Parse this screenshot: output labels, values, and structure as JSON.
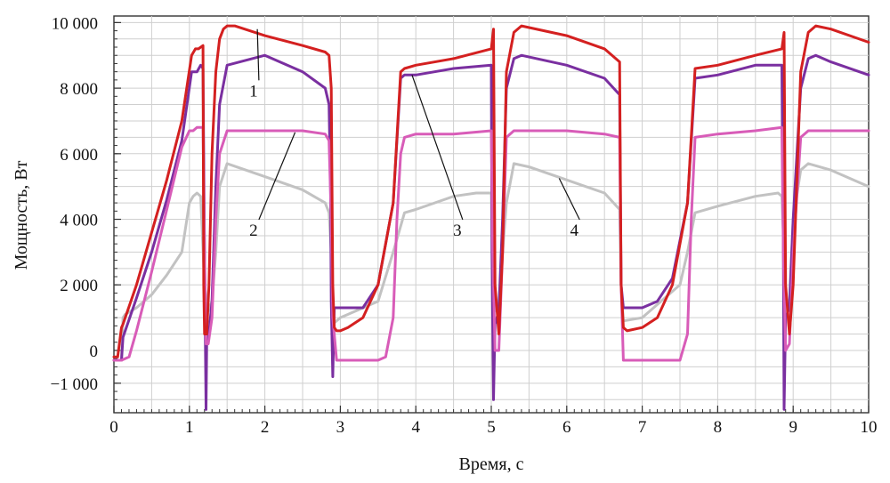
{
  "chart_data": {
    "type": "line",
    "title": "",
    "xlabel": "Время, с",
    "ylabel": "Мощность, Вт",
    "xlim": [
      0,
      10
    ],
    "ylim": [
      -1900,
      10200
    ],
    "grid": true,
    "x_ticks": [
      {
        "value": 0,
        "label": "0"
      },
      {
        "value": 1,
        "label": "1"
      },
      {
        "value": 2,
        "label": "2"
      },
      {
        "value": 3,
        "label": "3"
      },
      {
        "value": 4,
        "label": "4"
      },
      {
        "value": 5,
        "label": "5"
      },
      {
        "value": 6,
        "label": "6"
      },
      {
        "value": 7,
        "label": "7"
      },
      {
        "value": 8,
        "label": "8"
      },
      {
        "value": 9,
        "label": "9"
      },
      {
        "value": 10,
        "label": "10"
      }
    ],
    "y_ticks": [
      {
        "value": -1000,
        "label": "−1 000"
      },
      {
        "value": 0,
        "label": "0"
      },
      {
        "value": 2000,
        "label": "2 000"
      },
      {
        "value": 4000,
        "label": "4 000"
      },
      {
        "value": 6000,
        "label": "6 000"
      },
      {
        "value": 8000,
        "label": "8 000"
      },
      {
        "value": 10000,
        "label": "10 000"
      }
    ],
    "series": [
      {
        "label": "1",
        "color": "#d42020",
        "x": [
          0,
          0.05,
          0.1,
          0.12,
          0.15,
          0.3,
          0.5,
          0.7,
          0.9,
          1.03,
          1.08,
          1.12,
          1.18,
          1.19,
          1.2,
          1.23,
          1.26,
          1.3,
          1.35,
          1.4,
          1.45,
          1.5,
          1.6,
          2.0,
          2.5,
          2.8,
          2.85,
          2.88,
          2.9,
          2.92,
          2.95,
          3.0,
          3.1,
          3.3,
          3.5,
          3.7,
          3.8,
          3.85,
          4.0,
          4.5,
          5.0,
          5.03,
          5.05,
          5.1,
          5.15,
          5.2,
          5.3,
          5.4,
          6.0,
          6.5,
          6.7,
          6.72,
          6.75,
          6.8,
          7.0,
          7.2,
          7.4,
          7.6,
          7.7,
          8.0,
          8.5,
          8.85,
          8.88,
          8.9,
          8.95,
          9.0,
          9.1,
          9.2,
          9.3,
          9.5,
          10.0
        ],
        "y": [
          -200,
          -200,
          700,
          800,
          1000,
          2000,
          3600,
          5200,
          7000,
          9000,
          9200,
          9200,
          9300,
          2000,
          500,
          500,
          2000,
          6000,
          8500,
          9500,
          9800,
          9900,
          9900,
          9600,
          9300,
          9100,
          9000,
          8000,
          2000,
          700,
          600,
          600,
          700,
          1000,
          2000,
          4500,
          8500,
          8600,
          8700,
          8900,
          9200,
          9800,
          2000,
          500,
          3000,
          8500,
          9700,
          9900,
          9600,
          9200,
          8800,
          2000,
          700,
          600,
          700,
          1000,
          2000,
          4500,
          8600,
          8700,
          9000,
          9200,
          9700,
          2000,
          500,
          2000,
          8500,
          9700,
          9900,
          9800,
          9400
        ]
      },
      {
        "label": "2",
        "color": "#d85cb8",
        "x": [
          0,
          0.1,
          0.2,
          0.3,
          0.5,
          0.7,
          0.9,
          1.0,
          1.05,
          1.1,
          1.15,
          1.18,
          1.2,
          1.22,
          1.25,
          1.3,
          1.35,
          1.4,
          1.5,
          2.0,
          2.5,
          2.8,
          2.85,
          2.88,
          2.9,
          2.95,
          3.0,
          3.5,
          3.6,
          3.7,
          3.75,
          3.8,
          3.85,
          4.0,
          4.5,
          5.0,
          5.02,
          5.05,
          5.1,
          5.15,
          5.2,
          5.3,
          6.0,
          6.5,
          6.7,
          6.72,
          6.75,
          7.0,
          7.5,
          7.6,
          7.65,
          7.7,
          8.0,
          8.5,
          8.85,
          8.87,
          8.9,
          8.95,
          9.0,
          9.1,
          9.2,
          9.5,
          10.0
        ],
        "y": [
          -300,
          -300,
          -200,
          600,
          2400,
          4300,
          6200,
          6700,
          6700,
          6800,
          6800,
          6800,
          3000,
          200,
          200,
          1000,
          4000,
          6000,
          6700,
          6700,
          6700,
          6600,
          6400,
          4000,
          1000,
          -300,
          -300,
          -300,
          -200,
          1000,
          4000,
          6000,
          6500,
          6600,
          6600,
          6700,
          3000,
          0,
          0,
          3000,
          6500,
          6700,
          6700,
          6600,
          6500,
          2000,
          -300,
          -300,
          -300,
          500,
          4000,
          6500,
          6600,
          6700,
          6800,
          3000,
          0,
          200,
          3000,
          6500,
          6700,
          6700,
          6700
        ]
      },
      {
        "label": "3",
        "color": "#7a2fa0",
        "x": [
          0,
          0.1,
          0.12,
          0.15,
          0.3,
          0.5,
          0.7,
          0.9,
          1.03,
          1.1,
          1.15,
          1.18,
          1.2,
          1.22,
          1.23,
          1.25,
          1.3,
          1.35,
          1.4,
          1.5,
          2.0,
          2.5,
          2.8,
          2.85,
          2.87,
          2.88,
          2.9,
          2.92,
          3.0,
          3.3,
          3.5,
          3.7,
          3.8,
          3.85,
          4.0,
          4.5,
          5.0,
          5.01,
          5.03,
          5.05,
          5.1,
          5.15,
          5.2,
          5.3,
          5.4,
          6.0,
          6.5,
          6.7,
          6.72,
          6.75,
          7.0,
          7.2,
          7.4,
          7.6,
          7.7,
          8.0,
          8.5,
          8.85,
          8.87,
          8.88,
          8.9,
          8.95,
          9.0,
          9.1,
          9.2,
          9.3,
          9.5,
          10.0
        ],
        "y": [
          -300,
          -300,
          400,
          600,
          1600,
          3000,
          4600,
          6400,
          8500,
          8500,
          8700,
          8600,
          3000,
          -1800,
          300,
          300,
          1500,
          5000,
          7500,
          8700,
          9000,
          8500,
          8000,
          7500,
          5000,
          1500,
          -800,
          1300,
          1300,
          1300,
          2000,
          4500,
          8300,
          8400,
          8400,
          8600,
          8700,
          3000,
          -1500,
          800,
          1200,
          4000,
          8000,
          8900,
          9000,
          8700,
          8300,
          7800,
          2000,
          1300,
          1300,
          1500,
          2200,
          4500,
          8300,
          8400,
          8700,
          8700,
          3000,
          -1800,
          1000,
          1300,
          4000,
          8000,
          8900,
          9000,
          8800,
          8400
        ]
      },
      {
        "label": "4",
        "color": "#c2c2c2",
        "x": [
          0,
          0.1,
          0.12,
          0.15,
          0.3,
          0.5,
          0.7,
          0.9,
          1.0,
          1.05,
          1.1,
          1.15,
          1.2,
          1.25,
          1.3,
          1.35,
          1.4,
          1.5,
          2.0,
          2.5,
          2.8,
          2.85,
          2.88,
          2.9,
          2.95,
          3.0,
          3.5,
          3.7,
          3.85,
          4.0,
          4.5,
          4.8,
          5.0,
          5.02,
          5.05,
          5.1,
          5.2,
          5.3,
          5.5,
          6.0,
          6.5,
          6.7,
          6.72,
          6.75,
          7.0,
          7.5,
          7.6,
          7.7,
          8.0,
          8.5,
          8.8,
          8.85,
          8.88,
          8.9,
          8.95,
          9.0,
          9.1,
          9.2,
          9.5,
          10.0
        ],
        "y": [
          -300,
          -300,
          1000,
          1100,
          1300,
          1700,
          2300,
          3000,
          4500,
          4700,
          4800,
          4700,
          2000,
          1200,
          1500,
          3000,
          5000,
          5700,
          5300,
          4900,
          4500,
          4200,
          3000,
          800,
          900,
          1000,
          1500,
          3000,
          4200,
          4300,
          4700,
          4800,
          4800,
          2500,
          1200,
          1500,
          4500,
          5700,
          5600,
          5200,
          4800,
          4300,
          2000,
          900,
          1000,
          2000,
          3000,
          4200,
          4400,
          4700,
          4800,
          4700,
          3000,
          1200,
          1500,
          4000,
          5500,
          5700,
          5500,
          5000
        ]
      }
    ],
    "callouts": [
      {
        "label": "1",
        "target": [
          1.9,
          9800
        ],
        "text_at": [
          1.85,
          7750
        ]
      },
      {
        "label": "2",
        "target": [
          2.4,
          6650
        ],
        "text_at": [
          1.85,
          3500
        ]
      },
      {
        "label": "3",
        "target": [
          3.95,
          8400
        ],
        "text_at": [
          4.55,
          3500
        ]
      },
      {
        "label": "4",
        "target": [
          5.9,
          5250
        ],
        "text_at": [
          6.1,
          3500
        ]
      }
    ]
  }
}
